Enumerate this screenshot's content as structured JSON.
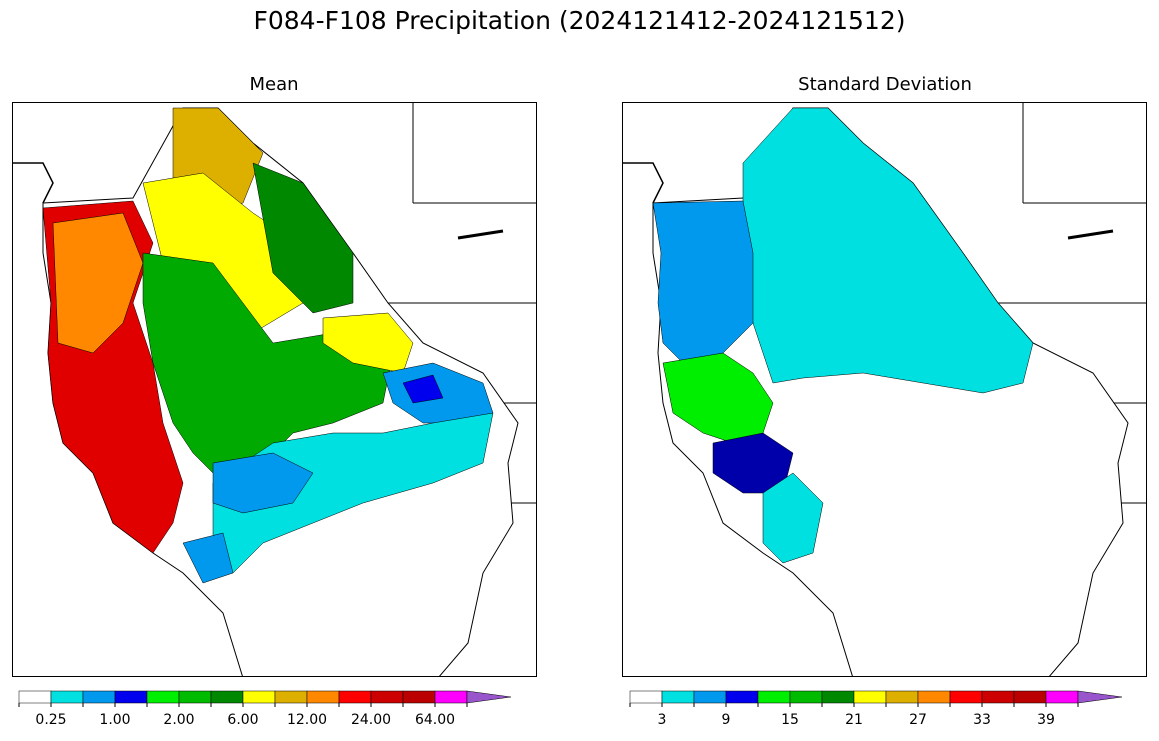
{
  "title": "F084-F108 Precipitation (2024121412-2024121512)",
  "panels": [
    {
      "title": "Mean",
      "colorbar": {
        "colors": [
          "#ffffff",
          "#00e0e0",
          "#0099ee",
          "#0000ee",
          "#00ee00",
          "#00bb00",
          "#008800",
          "#ffff00",
          "#ddb000",
          "#ff8800",
          "#ff0000",
          "#cc0000",
          "#bb0000",
          "#ff00ff",
          "#9955cc"
        ],
        "tick_labels": [
          "0.25",
          "1.00",
          "2.00",
          "6.00",
          "12.00",
          "24.00",
          "64.00"
        ]
      }
    },
    {
      "title": "Standard Deviation",
      "colorbar": {
        "colors": [
          "#ffffff",
          "#00e0e0",
          "#0099ee",
          "#0000ee",
          "#00ee00",
          "#00bb00",
          "#008800",
          "#ffff00",
          "#ddb000",
          "#ff8800",
          "#ff0000",
          "#cc0000",
          "#bb0000",
          "#ff00ff",
          "#9955cc"
        ],
        "tick_labels": [
          "3",
          "9",
          "15",
          "21",
          "27",
          "33",
          "39"
        ]
      }
    }
  ]
}
